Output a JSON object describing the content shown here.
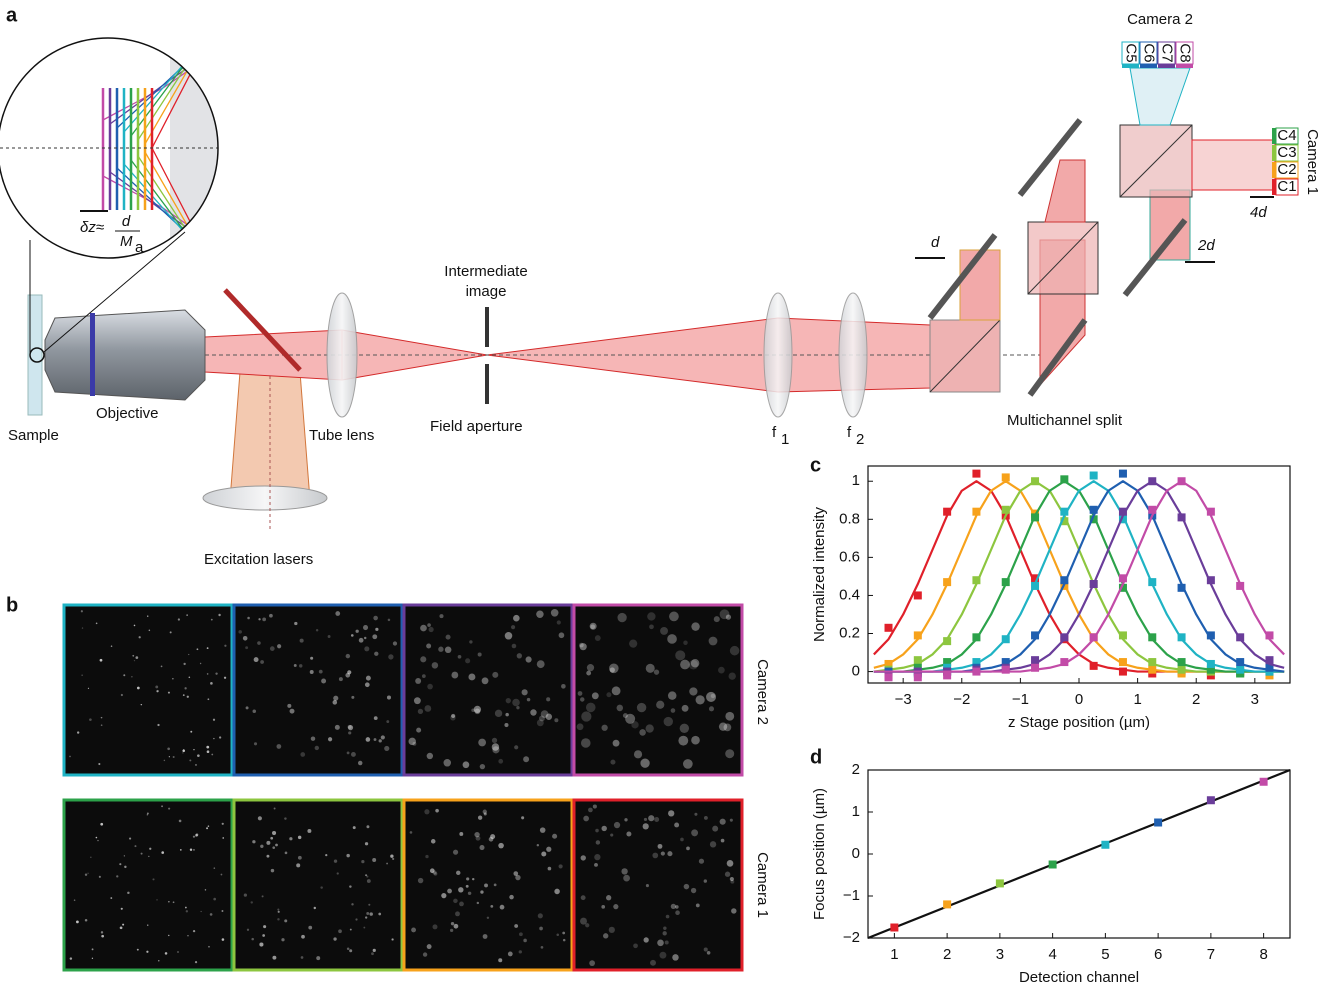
{
  "panel_labels": [
    "a",
    "b",
    "c",
    "d"
  ],
  "diagram": {
    "camera_2": "Camera 2",
    "camera_1": "Camera 1",
    "camera_2_channels": [
      "C5",
      "C6",
      "C7",
      "C8"
    ],
    "camera_1_channels": [
      "C4",
      "C3",
      "C2",
      "C1"
    ],
    "shift_4d": "4d",
    "shift_2d": "2d",
    "shift_d": "d",
    "delta_z": "δz≈",
    "fraction_numerator": "d",
    "fraction_denominator": "M",
    "fraction_subscript": "a",
    "intermediate_image": [
      "Intermediate",
      "image"
    ],
    "field_aperture": "Field aperture",
    "tube_lens": "Tube lens",
    "objective": "Objective",
    "sample": "Sample",
    "excitation_lasers": "Excitation lasers",
    "lens_f1": [
      "f",
      "1"
    ],
    "lens_f2": [
      "f",
      "2"
    ],
    "multichannel_split": "Multichannel split"
  },
  "images": {
    "camera_2": "Camera 2",
    "camera_1": "Camera 1"
  },
  "chart_data": [
    {
      "type": "line",
      "x_label": "z Stage position (µm)",
      "y_label": "Normalized intensity",
      "xlim": [
        -3.6,
        3.6
      ],
      "ylim": [
        -0.06,
        1.08
      ],
      "xticks": [
        {
          "value": -3,
          "label": "−3"
        },
        {
          "value": -2,
          "label": "−2"
        },
        {
          "value": -1,
          "label": "−1"
        },
        0,
        1,
        2,
        3
      ],
      "yticks": [
        0,
        0.2,
        0.4,
        0.6,
        0.8,
        1
      ],
      "x": [
        -3.25,
        -2.75,
        -2.25,
        -1.75,
        -1.25,
        -0.75,
        -0.25,
        0.25,
        0.75,
        1.25,
        1.75,
        2.25,
        2.75,
        3.25
      ],
      "fit_x": [
        -3.5,
        -3.25,
        -3,
        -2.75,
        -2.5,
        -2.25,
        -2,
        -1.75,
        -1.5,
        -1.25,
        -1,
        -0.75,
        -0.5,
        -0.25,
        0,
        0.25,
        0.5,
        0.75,
        1,
        1.25,
        1.5,
        1.75,
        2,
        2.25,
        2.5,
        2.75,
        3,
        3.25,
        3.5
      ],
      "series": [
        {
          "color": "#e0202a",
          "values": [
            0.23,
            0.4,
            0.84,
            1.04,
            0.82,
            0.49,
            0.17,
            0.03,
            0.0,
            -0.01,
            0,
            -0.02,
            0,
            0
          ],
          "fit": [
            0.09,
            0.17,
            0.3,
            0.46,
            0.64,
            0.82,
            0.95,
            1,
            0.95,
            0.82,
            0.64,
            0.46,
            0.3,
            0.17,
            0.09,
            0.04,
            0.02,
            0.01,
            0,
            0,
            0,
            0,
            0,
            0,
            0,
            0,
            0,
            0,
            0
          ]
        },
        {
          "color": "#f7a21b",
          "values": [
            0.04,
            0.19,
            0.47,
            0.84,
            1.02,
            0.83,
            0.45,
            0.18,
            0.05,
            0.01,
            -0.01,
            0,
            0,
            -0.02
          ],
          "fit": [
            0.02,
            0.04,
            0.09,
            0.17,
            0.3,
            0.46,
            0.64,
            0.82,
            0.95,
            1,
            0.95,
            0.82,
            0.64,
            0.46,
            0.3,
            0.17,
            0.09,
            0.04,
            0.02,
            0.01,
            0,
            0,
            0,
            0,
            0,
            0,
            0,
            0,
            0
          ]
        },
        {
          "color": "#8dc63f",
          "values": [
            0.01,
            0.06,
            0.16,
            0.48,
            0.85,
            1.0,
            0.79,
            0.46,
            0.19,
            0.05,
            0.01,
            0,
            -0.01,
            0
          ],
          "fit": [
            0,
            0.01,
            0.02,
            0.04,
            0.09,
            0.17,
            0.3,
            0.46,
            0.64,
            0.82,
            0.95,
            1,
            0.95,
            0.82,
            0.64,
            0.46,
            0.3,
            0.17,
            0.09,
            0.04,
            0.02,
            0.01,
            0,
            0,
            0,
            0,
            0,
            0,
            0
          ]
        },
        {
          "color": "#2ca24a",
          "values": [
            -0.02,
            0.02,
            0.05,
            0.18,
            0.47,
            0.81,
            1.01,
            0.8,
            0.44,
            0.18,
            0.05,
            0.01,
            -0.01,
            0
          ],
          "fit": [
            0,
            0,
            0,
            0.01,
            0.02,
            0.04,
            0.09,
            0.17,
            0.3,
            0.46,
            0.64,
            0.82,
            0.95,
            1,
            0.95,
            0.82,
            0.64,
            0.46,
            0.3,
            0.17,
            0.09,
            0.04,
            0.02,
            0.01,
            0,
            0,
            0,
            0,
            0
          ]
        },
        {
          "color": "#1fb3c4",
          "values": [
            -0.01,
            0,
            0.02,
            0.05,
            0.17,
            0.45,
            0.84,
            1.03,
            0.8,
            0.47,
            0.18,
            0.04,
            0.01,
            0
          ],
          "fit": [
            0,
            0,
            0,
            0,
            0,
            0.01,
            0.02,
            0.04,
            0.09,
            0.17,
            0.3,
            0.46,
            0.64,
            0.82,
            0.95,
            1,
            0.95,
            0.82,
            0.64,
            0.46,
            0.3,
            0.17,
            0.09,
            0.04,
            0.02,
            0.01,
            0,
            0,
            0
          ]
        },
        {
          "color": "#1f5fb0",
          "values": [
            0,
            -0.01,
            0,
            0.02,
            0.05,
            0.19,
            0.48,
            0.85,
            1.04,
            0.82,
            0.44,
            0.19,
            0.05,
            0.02
          ],
          "fit": [
            0,
            0,
            0,
            0,
            0,
            0,
            0,
            0.01,
            0.02,
            0.04,
            0.09,
            0.17,
            0.3,
            0.46,
            0.64,
            0.82,
            0.95,
            1,
            0.95,
            0.82,
            0.64,
            0.46,
            0.3,
            0.17,
            0.09,
            0.04,
            0.02,
            0.01,
            0
          ]
        },
        {
          "color": "#6a3d9a",
          "values": [
            -0.02,
            0,
            0,
            0.01,
            0.02,
            0.06,
            0.18,
            0.46,
            0.84,
            1.0,
            0.81,
            0.48,
            0.18,
            0.06
          ],
          "fit": [
            0,
            0,
            0,
            0,
            0,
            0,
            0,
            0,
            0,
            0.01,
            0.02,
            0.04,
            0.09,
            0.17,
            0.3,
            0.46,
            0.64,
            0.82,
            0.95,
            1,
            0.95,
            0.82,
            0.64,
            0.46,
            0.3,
            0.17,
            0.09,
            0.04,
            0.02
          ]
        },
        {
          "color": "#c24ba7",
          "values": [
            -0.03,
            -0.03,
            -0.02,
            0,
            0.01,
            0.02,
            0.05,
            0.18,
            0.49,
            0.85,
            1.0,
            0.84,
            0.45,
            0.19
          ],
          "fit": [
            0,
            0,
            0,
            0,
            0,
            0,
            0,
            0,
            0,
            0,
            0,
            0.01,
            0.02,
            0.04,
            0.09,
            0.17,
            0.3,
            0.46,
            0.64,
            0.82,
            0.95,
            1,
            0.95,
            0.82,
            0.64,
            0.46,
            0.3,
            0.17,
            0.09
          ]
        }
      ]
    },
    {
      "type": "scatter",
      "x_label": "Detection channel",
      "y_label": "Focus position (µm)",
      "xlim": [
        0.5,
        8.5
      ],
      "ylim": [
        -2,
        2
      ],
      "xticks": [
        1,
        2,
        3,
        4,
        5,
        6,
        7,
        8
      ],
      "yticks": [
        {
          "value": -2,
          "label": "−2"
        },
        {
          "value": -1,
          "label": "−1"
        },
        0,
        1,
        2
      ],
      "x": [
        1,
        2,
        3,
        4,
        5,
        6,
        7,
        8
      ],
      "values": [
        -1.75,
        -1.2,
        -0.7,
        -0.25,
        0.22,
        0.75,
        1.28,
        1.72
      ],
      "colors": [
        "#e0202a",
        "#f7a21b",
        "#8dc63f",
        "#2ca24a",
        "#1fb3c4",
        "#1f5fb0",
        "#6a3d9a",
        "#c24ba7"
      ],
      "fit_x": [
        0.5,
        8.5
      ],
      "fit": [
        -2,
        2
      ],
      "fit_color": "#111111"
    }
  ]
}
